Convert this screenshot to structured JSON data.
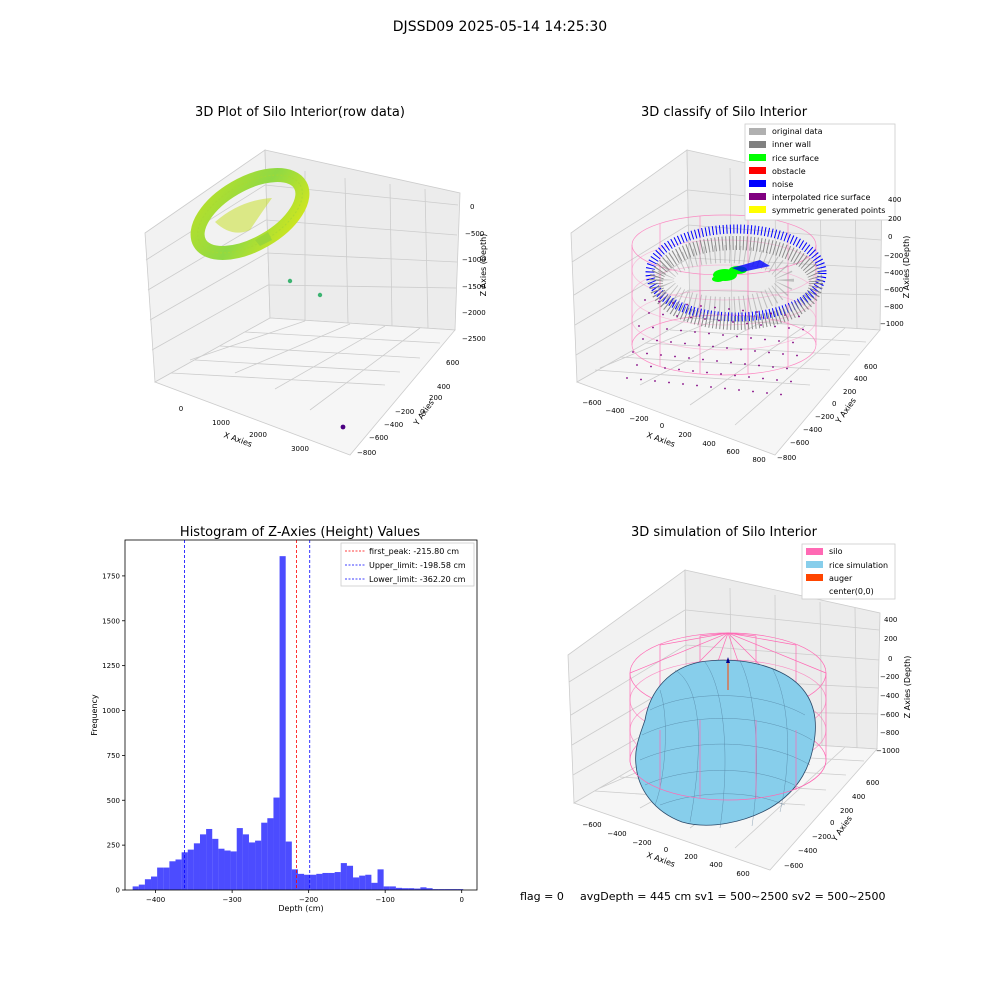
{
  "suptitle": "DJSSD09 2025-05-14 14:25:30",
  "footer": {
    "flag": "flag = 0",
    "stats": "avgDepth = 445 cm  sv1 = 500~2500  sv2 = 500~2500"
  },
  "colors": {
    "bar": "#0000ff",
    "first_peak": "#ff0000",
    "limits": "#0000ff",
    "silo": "#ff69b4",
    "rice": "#87ceeb",
    "auger": "#ff4500",
    "rice_surface": "#00ff00",
    "noise": "#0000ff",
    "inner_wall": "#808080",
    "original": "#b0b0b0",
    "obstacle": "#ff0000",
    "interp": "#800080",
    "symmetric": "#ffff00"
  },
  "chart_data": [
    {
      "type": "scatter",
      "title": "3D Plot of Silo Interior(row data)",
      "xlabel": "X Axies",
      "ylabel": "Y Axies",
      "zlabel": "Z Axies (Depth)",
      "x_ticks": [
        "0",
        "1000",
        "2000",
        "3000"
      ],
      "y_ticks": [
        "600",
        "400",
        "200",
        "0",
        "−200",
        "−400",
        "−600",
        "−800"
      ],
      "z_ticks": [
        "0",
        "−500",
        "−1000",
        "−1500",
        "−2000",
        "−2500"
      ],
      "outliers": [
        {
          "x": 800,
          "y": 400,
          "z": -1450,
          "color": "#3cb371"
        },
        {
          "x": 1300,
          "y": 350,
          "z": -1500,
          "color": "#3cb371"
        },
        {
          "x": 3500,
          "y": -700,
          "z": -2600,
          "color": "#4b0082"
        }
      ]
    },
    {
      "type": "scatter",
      "title": "3D classify of Silo Interior",
      "xlabel": "X Axies",
      "ylabel": "Y Axies",
      "zlabel": "Z Axies (Depth)",
      "x_ticks": [
        "−600",
        "−400",
        "−200",
        "0",
        "200",
        "400",
        "600",
        "800"
      ],
      "y_ticks": [
        "600",
        "400",
        "200",
        "0",
        "−200",
        "−400",
        "−600",
        "−800"
      ],
      "z_ticks": [
        "400",
        "200",
        "0",
        "−200",
        "−400",
        "−600",
        "−800",
        "−1000"
      ],
      "legend": [
        "original data",
        "inner wall",
        "rice surface",
        "obstacle",
        "noise",
        "interpolated rice surface",
        "symmetric generated points"
      ]
    },
    {
      "type": "bar",
      "title": "Histogram of Z-Axies (Height) Values",
      "xlabel": "Depth (cm)",
      "ylabel": "Frequency",
      "xlim": [
        -440,
        20
      ],
      "ylim": [
        0,
        1950
      ],
      "x_ticks": [
        -400,
        -300,
        -200,
        -100,
        0
      ],
      "x_tick_labels": [
        "−400",
        "−300",
        "−200",
        "−100",
        "0"
      ],
      "y_ticks": [
        0,
        250,
        500,
        750,
        1000,
        1250,
        1500,
        1750
      ],
      "bin_start": -430,
      "bin_width": 8,
      "values": [
        20,
        30,
        60,
        75,
        125,
        125,
        160,
        170,
        210,
        225,
        260,
        310,
        340,
        285,
        230,
        220,
        215,
        345,
        310,
        265,
        275,
        375,
        400,
        515,
        1860,
        270,
        115,
        90,
        85,
        85,
        90,
        95,
        95,
        100,
        150,
        135,
        70,
        80,
        85,
        40,
        115,
        20,
        20,
        12,
        10,
        10,
        8,
        15,
        10,
        5,
        5,
        5,
        5,
        5
      ],
      "lines": [
        {
          "label": "first_peak: -215.80 cm",
          "value": -215.8,
          "color": "#ff0000"
        },
        {
          "label": "Upper_limit: -198.58 cm",
          "value": -198.58,
          "color": "#0000ff"
        },
        {
          "label": "Lower_limit: -362.20 cm",
          "value": -362.2,
          "color": "#0000ff"
        }
      ]
    },
    {
      "type": "scatter",
      "title": "3D simulation of Silo Interior",
      "xlabel": "X Axies",
      "ylabel": "Y Axies",
      "zlabel": "Z Axies (Depth)",
      "x_ticks": [
        "−600",
        "−400",
        "−200",
        "0",
        "200",
        "400",
        "600"
      ],
      "y_ticks": [
        "600",
        "400",
        "200",
        "0",
        "−200",
        "−400",
        "−600"
      ],
      "z_ticks": [
        "400",
        "200",
        "0",
        "−200",
        "−400",
        "−600",
        "−800",
        "−1000"
      ],
      "legend": [
        "silo",
        "rice simulation",
        "auger",
        "center(0,0)"
      ]
    }
  ]
}
